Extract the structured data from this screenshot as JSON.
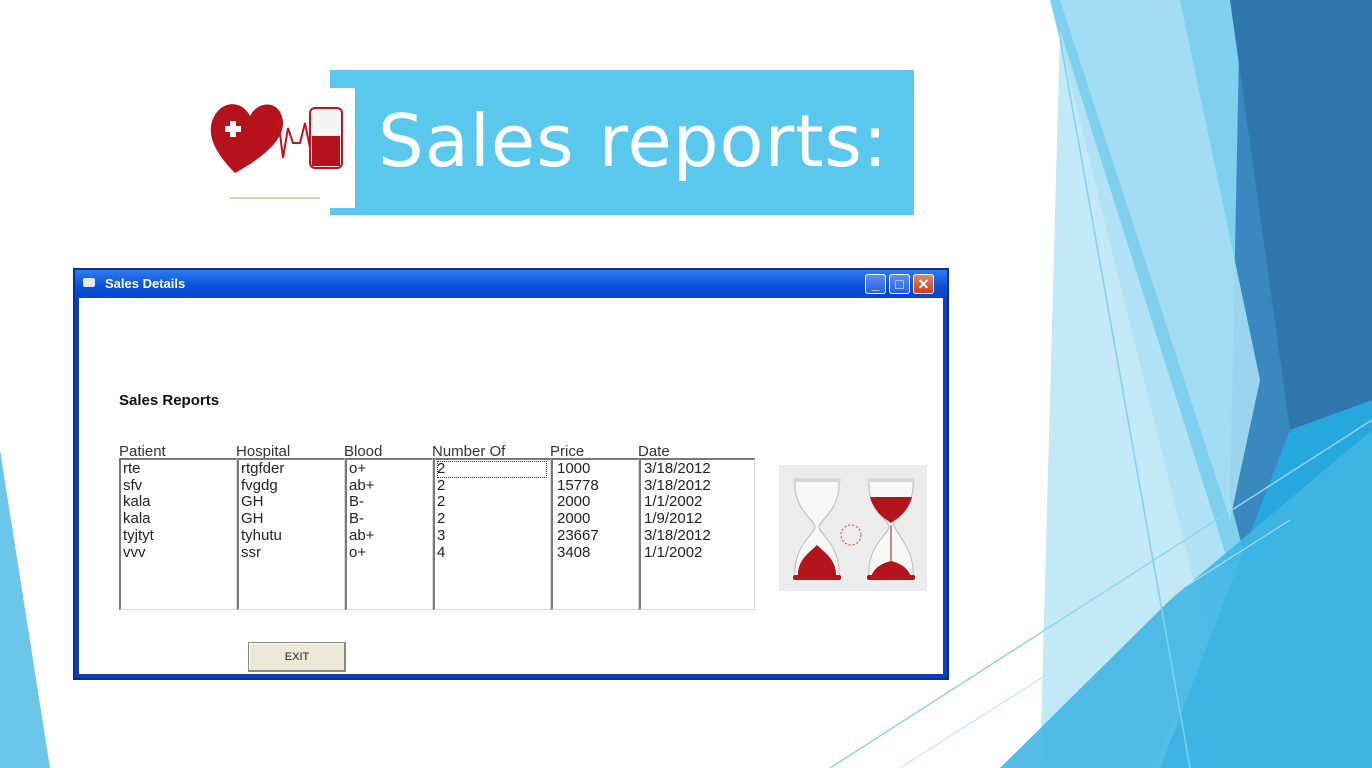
{
  "slide": {
    "title": "Sales reports:"
  },
  "window": {
    "title": "Sales Details",
    "minimize_glyph": "_",
    "maximize_glyph": "□",
    "close_glyph": "✕"
  },
  "form": {
    "heading": "Sales Reports",
    "columns": [
      {
        "label": "Patient\nName",
        "rows": [
          "rte",
          "sfv",
          "kala",
          "kala",
          "tyjtyt",
          "vvv"
        ]
      },
      {
        "label": "Hospital\nName",
        "rows": [
          "rtgfder",
          "fvgdg",
          "GH",
          "GH",
          "tyhutu",
          "ssr"
        ]
      },
      {
        "label": "Blood\nName",
        "rows": [
          "o+",
          "ab+",
          "B-",
          "B-",
          "ab+",
          "o+"
        ]
      },
      {
        "label": "Number Of\nBottles",
        "rows": [
          "2",
          "2",
          "2",
          "2",
          "3",
          "4"
        ]
      },
      {
        "label": "Price",
        "rows": [
          "1000",
          "15778",
          "2000",
          "2000",
          "23667",
          "3408"
        ]
      },
      {
        "label": "Date",
        "rows": [
          "3/18/2012",
          "3/18/2012",
          "1/1/2002",
          "1/9/2012",
          "3/18/2012",
          "1/1/2002"
        ]
      }
    ],
    "exit_label": "EXIT"
  },
  "colors": {
    "banner": "#5ac8ec",
    "window_border": "#0b3ebe",
    "accent_dark": "#2a6fa8"
  },
  "icons": {
    "logo": "heart-medical-logo-icon",
    "image": "hourglass-image"
  }
}
